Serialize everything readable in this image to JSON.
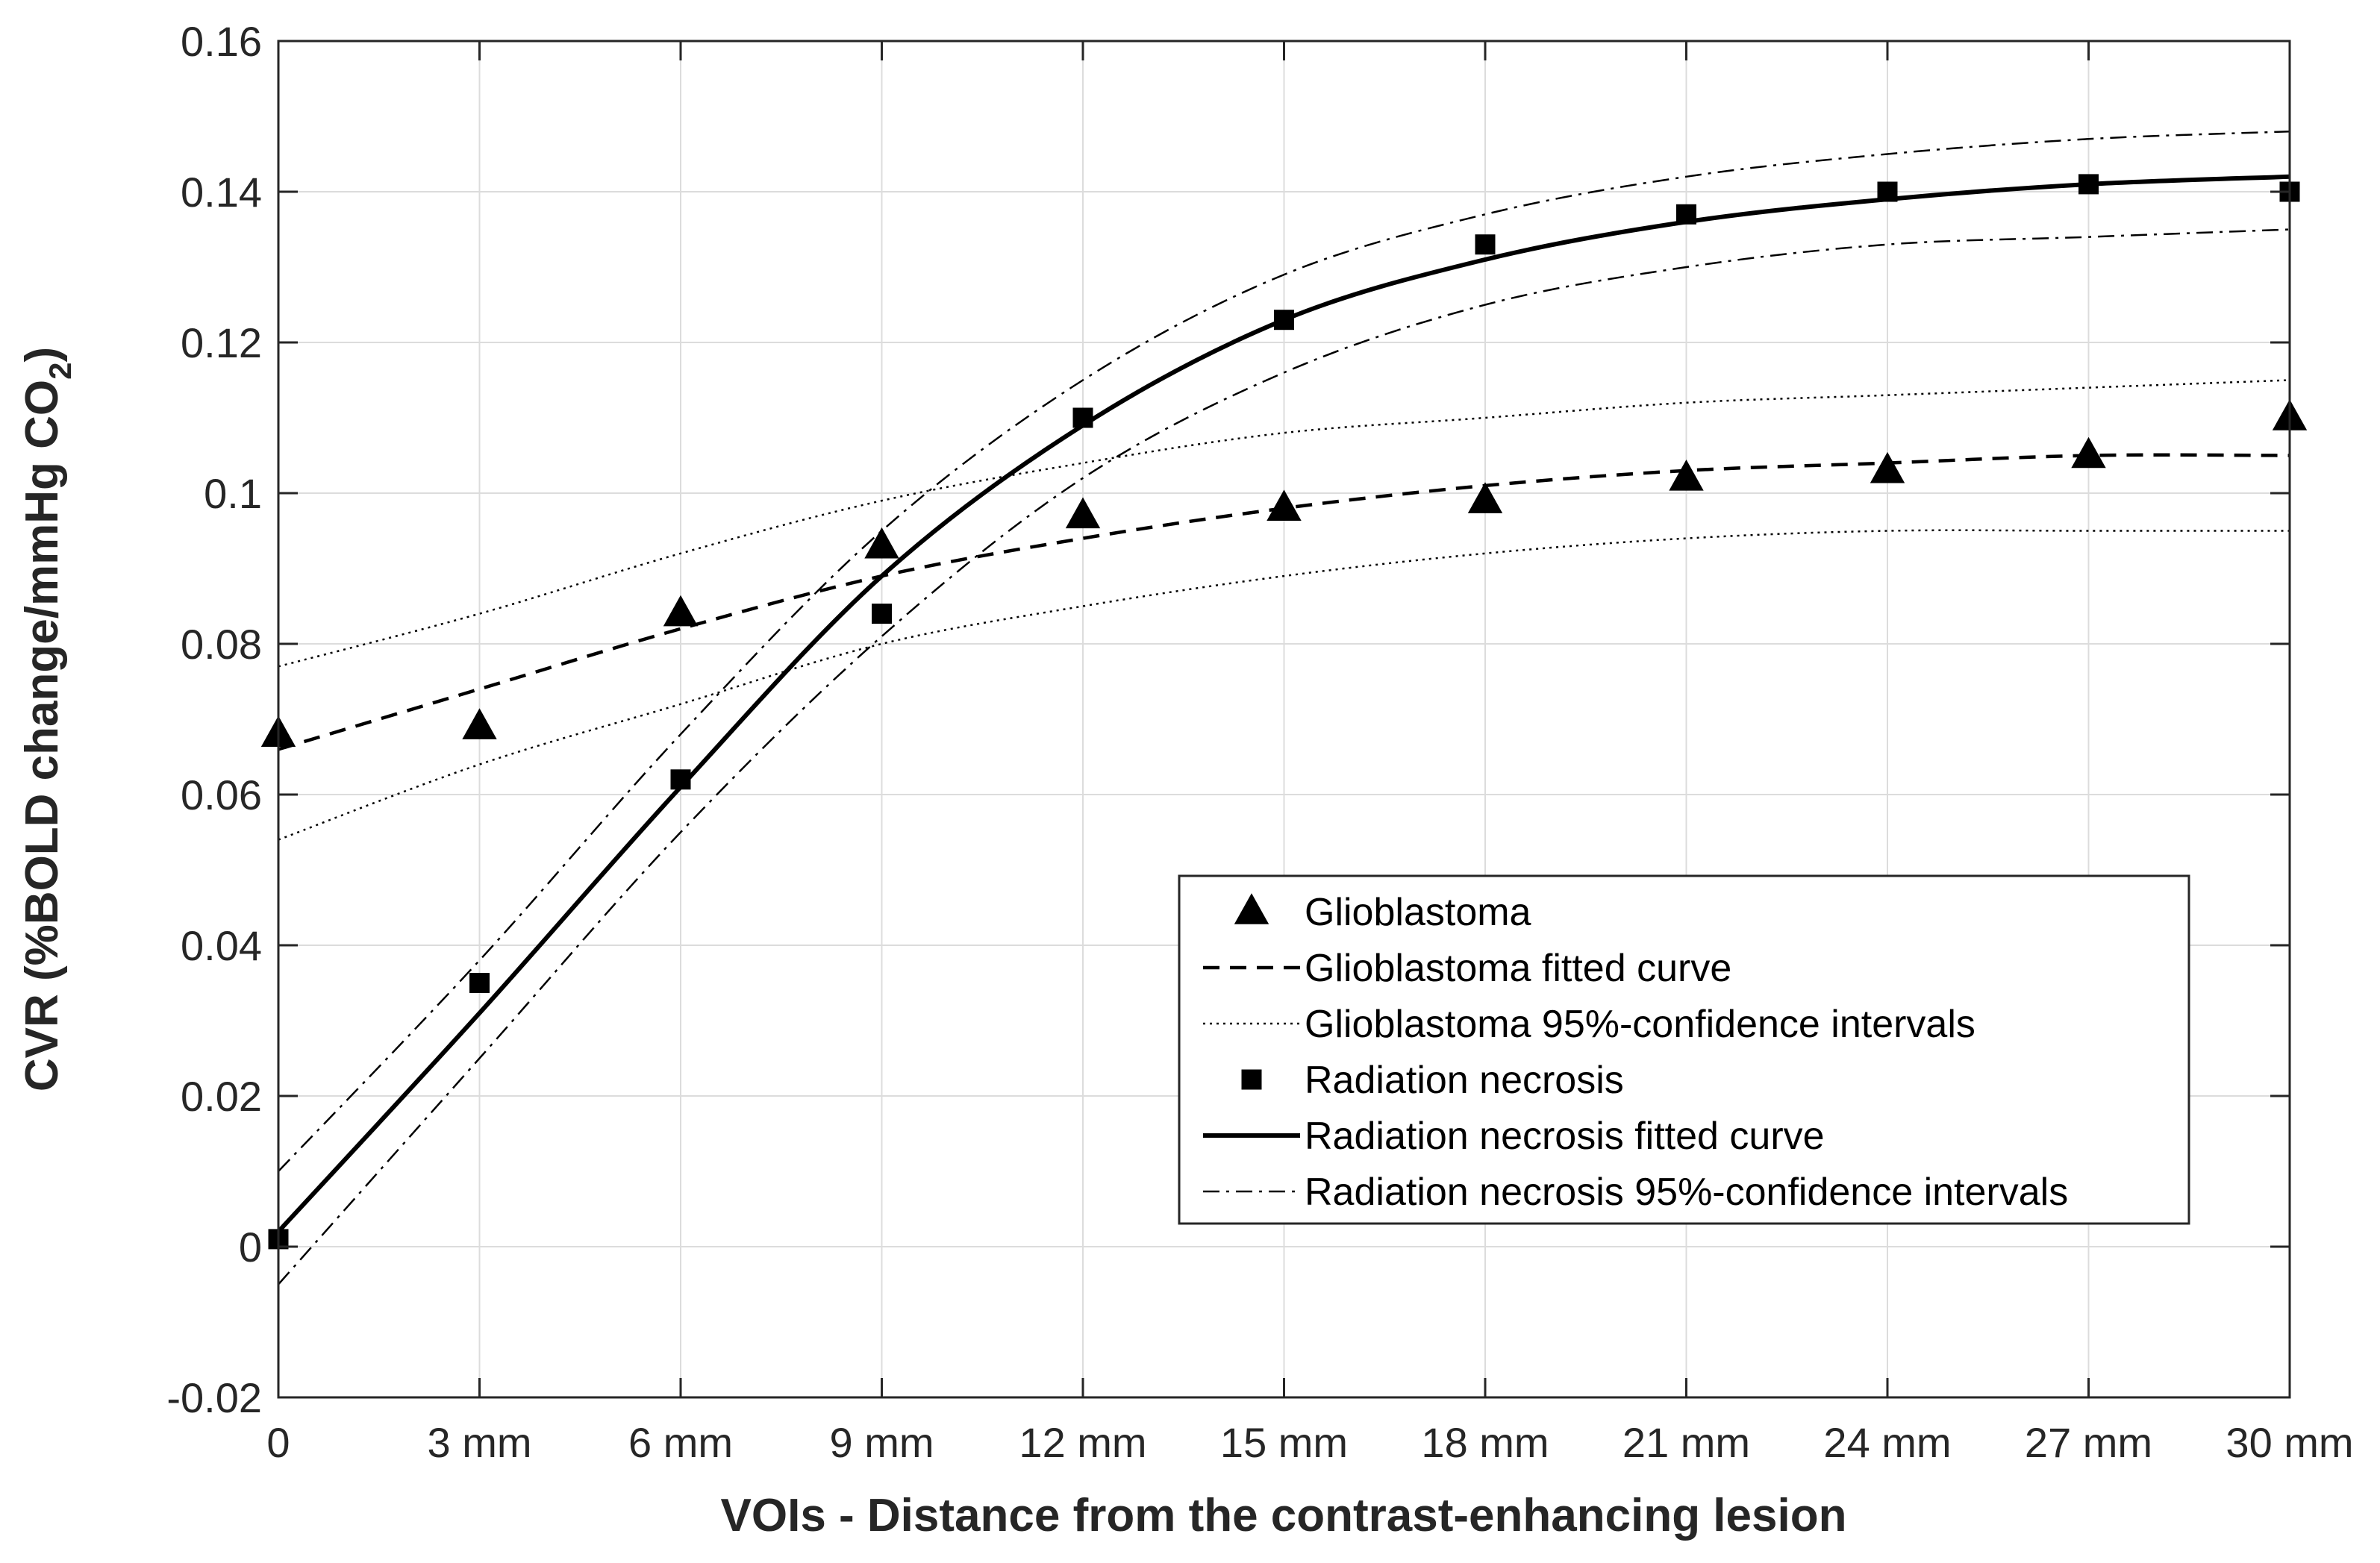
{
  "chart_data": {
    "type": "scatter",
    "title": "",
    "xlabel": "VOIs - Distance from the contrast-enhancing lesion",
    "ylabel": {
      "main": "CVR (%BOLD change/mmHg CO",
      "subscript": "2",
      "close": ")"
    },
    "x": [
      0,
      3,
      6,
      9,
      12,
      15,
      18,
      21,
      24,
      27,
      30
    ],
    "xtick_labels": [
      "0",
      "3 mm",
      "6 mm",
      "9 mm",
      "12 mm",
      "15 mm",
      "18 mm",
      "21 mm",
      "24 mm",
      "27 mm",
      "30 mm"
    ],
    "xlim": [
      0,
      30
    ],
    "ylim": [
      -0.02,
      0.16
    ],
    "yticks": [
      -0.02,
      0,
      0.02,
      0.04,
      0.06,
      0.08,
      0.1,
      0.12,
      0.14,
      0.16
    ],
    "ytick_labels": [
      "-0.02",
      "0",
      "0.02",
      "0.04",
      "0.06",
      "0.08",
      "0.1",
      "0.12",
      "0.14",
      "0.16"
    ],
    "grid": true,
    "legend_position": "lower-right",
    "series": [
      {
        "name": "Glioblastoma",
        "kind": "markers",
        "marker": "triangle",
        "values": [
          0.068,
          0.069,
          0.084,
          0.093,
          0.097,
          0.098,
          0.099,
          0.102,
          0.103,
          0.105,
          0.11
        ]
      },
      {
        "name": "Glioblastoma fitted curve",
        "kind": "line",
        "style": "dashed",
        "values": [
          0.066,
          0.074,
          0.082,
          0.089,
          0.094,
          0.098,
          0.101,
          0.103,
          0.104,
          0.105,
          0.105
        ]
      },
      {
        "name": "Glioblastoma 95%-confidence intervals",
        "kind": "line",
        "style": "dotted",
        "upper": [
          0.077,
          0.084,
          0.092,
          0.099,
          0.104,
          0.108,
          0.11,
          0.112,
          0.113,
          0.114,
          0.115
        ],
        "lower": [
          0.054,
          0.064,
          0.072,
          0.08,
          0.085,
          0.089,
          0.092,
          0.094,
          0.095,
          0.095,
          0.095
        ]
      },
      {
        "name": "Radiation necrosis",
        "kind": "markers",
        "marker": "square",
        "values": [
          0.001,
          0.035,
          0.062,
          0.084,
          0.11,
          0.123,
          0.133,
          0.137,
          0.14,
          0.141,
          0.14
        ]
      },
      {
        "name": "Radiation necrosis fitted curve",
        "kind": "line",
        "style": "solid",
        "values": [
          0.002,
          0.031,
          0.061,
          0.089,
          0.109,
          0.123,
          0.131,
          0.136,
          0.139,
          0.141,
          0.142
        ]
      },
      {
        "name": "Radiation necrosis 95%-confidence intervals",
        "kind": "line",
        "style": "dashdot",
        "upper": [
          0.01,
          0.038,
          0.068,
          0.095,
          0.115,
          0.129,
          0.137,
          0.142,
          0.145,
          0.147,
          0.148
        ],
        "lower": [
          -0.005,
          0.025,
          0.055,
          0.081,
          0.102,
          0.116,
          0.125,
          0.13,
          0.133,
          0.134,
          0.135
        ]
      }
    ]
  }
}
